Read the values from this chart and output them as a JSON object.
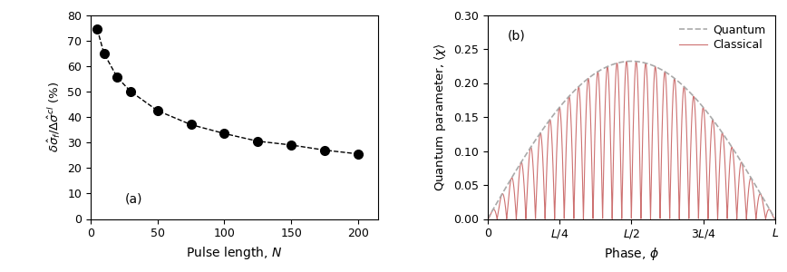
{
  "left_x": [
    5,
    10,
    20,
    30,
    50,
    75,
    100,
    125,
    150,
    175,
    200
  ],
  "left_y": [
    74.5,
    65.0,
    55.5,
    50.0,
    42.5,
    37.0,
    33.5,
    30.5,
    29.0,
    27.0,
    25.5
  ],
  "left_xlabel": "Pulse length, $N$",
  "left_ylabel": "$\\delta\\hat{\\sigma}_f/\\Delta\\hat{\\sigma}^{cl}$ (%)",
  "left_label": "(a)",
  "left_xlim": [
    0,
    215
  ],
  "left_ylim": [
    0,
    80
  ],
  "left_xticks": [
    0,
    50,
    100,
    150,
    200
  ],
  "left_yticks": [
    0,
    10,
    20,
    30,
    40,
    50,
    60,
    70,
    80
  ],
  "right_xlabel": "Phase, $\\phi$",
  "right_ylabel": "Quantum parameter, $\\langle\\chi\\rangle$",
  "right_label": "(b)",
  "right_xlim": [
    0,
    1.0
  ],
  "right_ylim": [
    0,
    0.3
  ],
  "right_yticks": [
    0,
    0.05,
    0.1,
    0.15,
    0.2,
    0.25,
    0.3
  ],
  "right_xtick_labels": [
    "0",
    "$L/4$",
    "$L/2$",
    "$3L/4$",
    "$L$"
  ],
  "right_xtick_positions": [
    0,
    0.25,
    0.5,
    0.75,
    1.0
  ],
  "num_oscillations": 30,
  "quantum_color": "#aaaaaa",
  "classical_color": "#cd7070",
  "background_color": "#ffffff",
  "legend_quantum": "Quantum",
  "legend_classical": "Classical"
}
